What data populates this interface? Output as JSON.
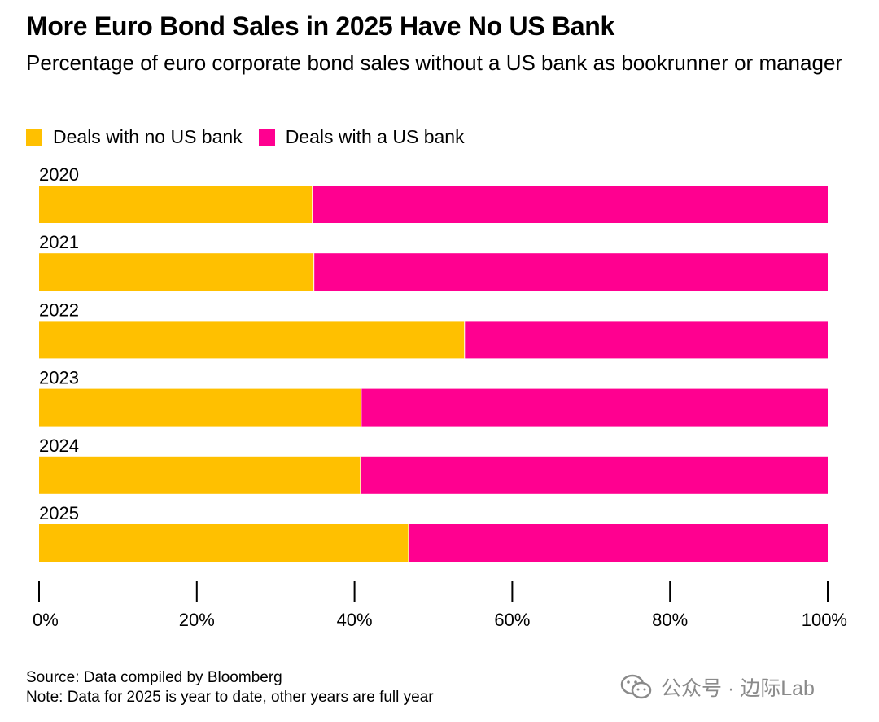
{
  "title": "More Euro Bond Sales in 2025 Have No US Bank",
  "subtitle": "Percentage of euro corporate bond sales without a US bank as bookrunner or manager",
  "legend": [
    {
      "label": "Deals with no US bank",
      "color": "#FFC000"
    },
    {
      "label": "Deals with a US bank",
      "color": "#FF0090"
    }
  ],
  "chart_data": {
    "type": "bar",
    "orientation": "horizontal",
    "stacked": true,
    "categories": [
      "2020",
      "2021",
      "2022",
      "2023",
      "2024",
      "2025"
    ],
    "series": [
      {
        "name": "Deals with no US bank",
        "color": "#FFC000",
        "values": [
          34.7,
          34.9,
          54.0,
          40.9,
          40.8,
          46.9
        ]
      },
      {
        "name": "Deals with a US bank",
        "color": "#FF0090",
        "values": [
          65.3,
          65.1,
          46.0,
          59.1,
          59.2,
          53.1
        ]
      }
    ],
    "xlim": [
      0,
      100
    ],
    "xticks": [
      "0%",
      "20%",
      "40%",
      "60%",
      "80%",
      "100%"
    ],
    "grid": false,
    "legend_position": "top-left"
  },
  "footer": {
    "source": "Source: Data compiled by Bloomberg",
    "note": "Note: Data for 2025 is year to date, other years are full year"
  },
  "watermark": {
    "icon": "wechat-icon",
    "text": "公众号 · 边际Lab"
  }
}
